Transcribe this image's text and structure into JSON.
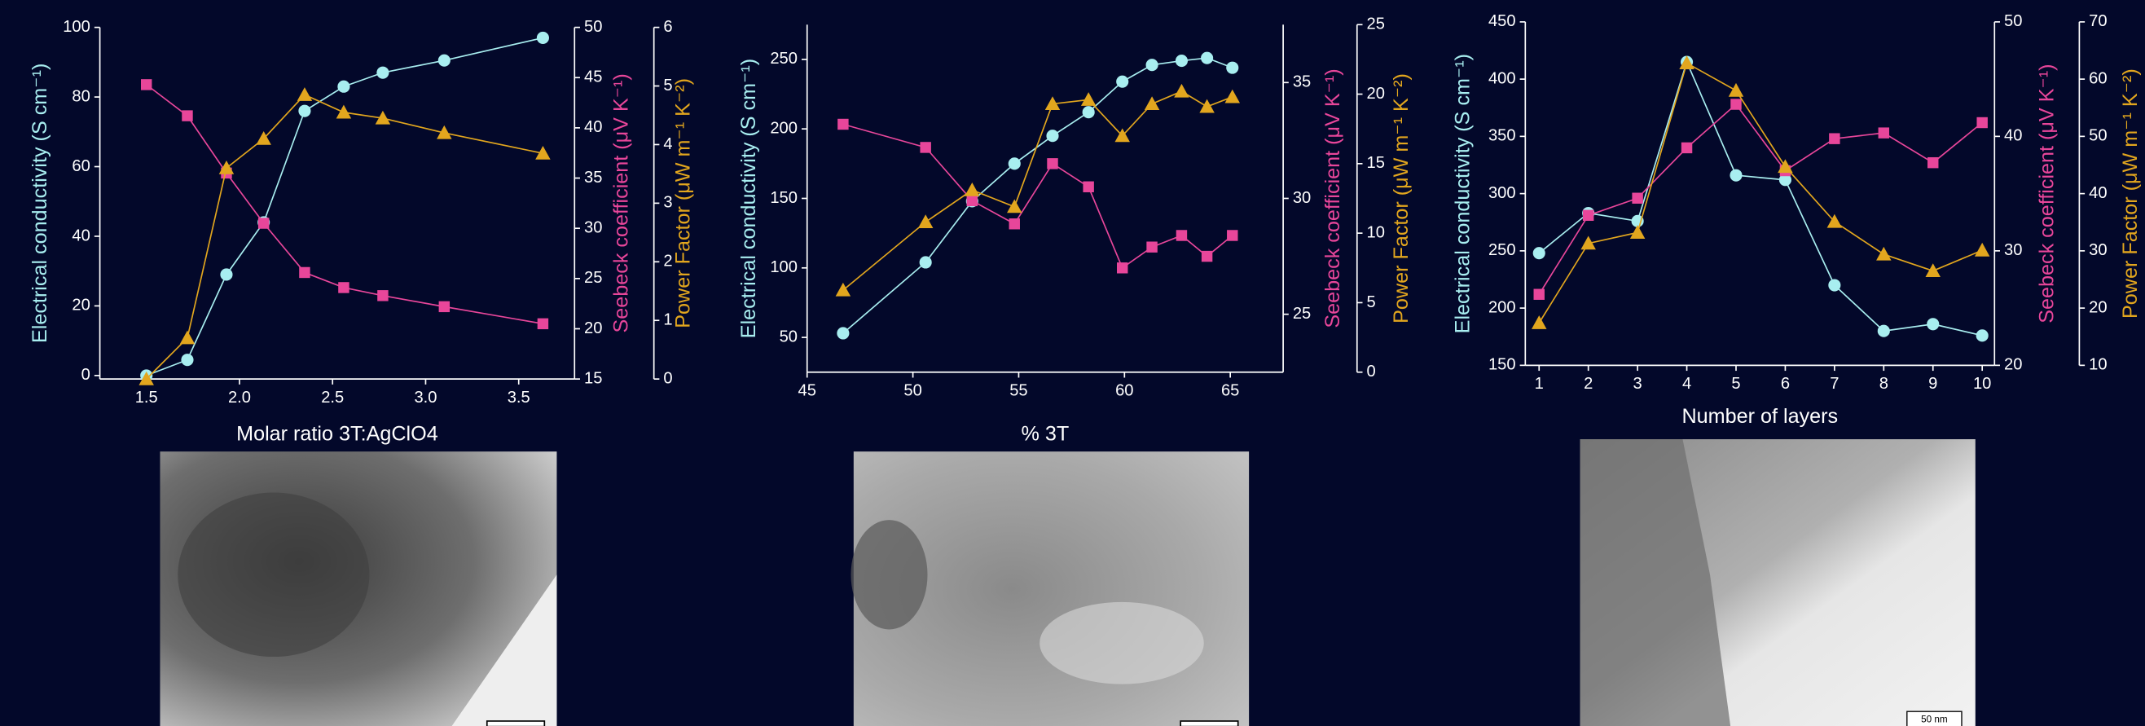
{
  "chart_data": [
    {
      "type": "line",
      "xlabel": "Molar ratio 3T:AgClO4",
      "ylabel": "Electrical conductivity (S cm⁻¹)",
      "y2label": "Seebeck coefficient (μV K⁻¹)",
      "y3label": "Power Factor (μW m⁻¹ K⁻²)",
      "x": [
        1.5,
        1.72,
        1.93,
        2.13,
        2.35,
        2.56,
        2.77,
        3.1,
        3.63
      ],
      "xlim": [
        1.25,
        3.8
      ],
      "xticks": [
        1.5,
        {
          "value": 2,
          "label": "2.0"
        },
        2.5,
        {
          "value": 3,
          "label": "3.0"
        },
        3.5
      ],
      "ylim": [
        -1,
        100
      ],
      "yticks": [
        0,
        20,
        40,
        60,
        80,
        100
      ],
      "y2lim": [
        15,
        50
      ],
      "y2ticks": [
        15,
        20,
        25,
        30,
        35,
        40,
        45,
        50
      ],
      "y3lim": [
        0,
        6
      ],
      "y3ticks": [
        0,
        1,
        2,
        3,
        4,
        5,
        6
      ],
      "series": [
        {
          "color": "#a8eef0",
          "marker": "circle",
          "axis": "y",
          "values": [
            0,
            4.5,
            29,
            44,
            76,
            83,
            87,
            90.5,
            97
          ]
        },
        {
          "color": "#e8469a",
          "marker": "square",
          "axis": "y2",
          "values": [
            44.3,
            41.2,
            35.5,
            30.5,
            25.6,
            24.1,
            23.3,
            22.2,
            20.5
          ]
        },
        {
          "color": "#e2a61e",
          "marker": "triangle",
          "axis": "y3",
          "values": [
            0,
            0.7,
            3.6,
            4.1,
            4.85,
            4.55,
            4.45,
            4.2,
            3.85
          ]
        }
      ]
    },
    {
      "type": "line",
      "xlabel": "% 3T",
      "ylabel": "Electrical conductivity (S cm⁻¹)",
      "y2label": "Seebeck coefficient (μV K⁻¹)",
      "y3label": "Power Factor (μW m⁻¹ K⁻²)",
      "x": [
        46.7,
        50.6,
        52.8,
        54.8,
        56.6,
        58.3,
        59.9,
        61.3,
        62.7,
        63.9,
        65.1
      ],
      "xlim": [
        45,
        67.5
      ],
      "xticks": [
        45,
        50,
        55,
        60,
        65
      ],
      "ylim": [
        25,
        275
      ],
      "yticks": [
        50,
        100,
        150,
        200,
        250
      ],
      "y2lim": [
        22.5,
        37.5
      ],
      "y2ticks": [
        25,
        30,
        35
      ],
      "y3lim": [
        0,
        25
      ],
      "y3ticks": [
        0,
        5,
        10,
        15,
        20,
        25
      ],
      "series": [
        {
          "color": "#a8eef0",
          "marker": "circle",
          "axis": "y",
          "values": [
            53,
            104,
            148,
            175,
            195,
            212,
            234,
            246,
            249,
            251,
            244
          ]
        },
        {
          "color": "#e8469a",
          "marker": "square",
          "axis": "y2",
          "values": [
            33.2,
            32.2,
            29.9,
            28.9,
            31.5,
            30.5,
            27.0,
            27.9,
            28.4,
            27.5,
            28.4
          ]
        },
        {
          "color": "#e2a61e",
          "marker": "triangle",
          "axis": "y3",
          "values": [
            5.9,
            10.8,
            13.1,
            11.9,
            19.3,
            19.6,
            17.0,
            19.3,
            20.2,
            19.1,
            19.8
          ]
        }
      ]
    },
    {
      "type": "line",
      "xlabel": "Number of layers",
      "ylabel": "Electrical conductivity (S cm⁻¹)",
      "y2label": "Seebeck coefficient (μV K⁻¹)",
      "y3label": "Power Factor (μW m⁻¹ K⁻²)",
      "x": [
        1,
        2,
        3,
        4,
        5,
        6,
        7,
        8,
        9,
        10
      ],
      "xlim": [
        0.72,
        10.25
      ],
      "xticks": [
        1,
        2,
        3,
        4,
        5,
        6,
        7,
        8,
        9,
        10
      ],
      "ylim": [
        150,
        450
      ],
      "yticks": [
        150,
        200,
        250,
        300,
        350,
        400,
        450
      ],
      "y2lim": [
        20,
        50
      ],
      "y2ticks": [
        20,
        30,
        40,
        50
      ],
      "y3lim": [
        10,
        70
      ],
      "y3ticks": [
        10,
        20,
        30,
        40,
        50,
        60,
        70
      ],
      "series": [
        {
          "color": "#a8eef0",
          "marker": "circle",
          "axis": "y",
          "values": [
            248,
            283,
            276,
            415,
            316,
            312,
            220,
            180,
            186,
            176
          ]
        },
        {
          "color": "#e8469a",
          "marker": "square",
          "axis": "y2",
          "values": [
            26.2,
            33.1,
            34.6,
            39.0,
            42.8,
            37.0,
            39.8,
            40.3,
            37.7,
            41.2
          ]
        },
        {
          "color": "#e2a61e",
          "marker": "triangle",
          "axis": "y3",
          "values": [
            17.4,
            31.3,
            33.2,
            62.8,
            58.0,
            44.7,
            35.1,
            29.4,
            26.5,
            30.1
          ]
        }
      ]
    }
  ],
  "micrograph_scale_label": "50 nm"
}
